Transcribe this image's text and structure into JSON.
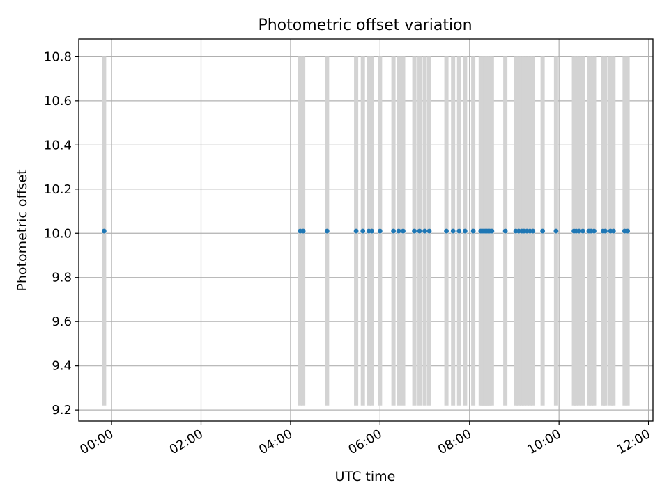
{
  "chart_data": {
    "type": "scatter",
    "title": "Photometric offset variation",
    "xlabel": "UTC time",
    "ylabel": "Photometric offset",
    "x_axis_kind": "time",
    "xlim": [
      "23:16",
      "12:06"
    ],
    "ylim": [
      9.15,
      10.88
    ],
    "grid": true,
    "x_ticks": [
      "00:00",
      "02:00",
      "04:00",
      "06:00",
      "08:00",
      "10:00",
      "12:00"
    ],
    "y_ticks": [
      "9.2",
      "9.4",
      "9.6",
      "9.8",
      "10.0",
      "10.2",
      "10.4",
      "10.6",
      "10.8"
    ],
    "marker_color": "#1f77b4",
    "errorbar_color": "#d3d3d3",
    "series": [
      {
        "x": [
          "23:50",
          "04:13",
          "04:17",
          "04:49",
          "05:28",
          "05:37",
          "05:45",
          "05:49",
          "06:00",
          "06:18",
          "06:25",
          "06:31",
          "06:46",
          "06:53",
          "07:00",
          "07:06",
          "07:29",
          "07:38",
          "07:46",
          "07:54",
          "08:05",
          "08:15",
          "08:17",
          "08:19",
          "08:21",
          "08:23",
          "08:25",
          "08:27",
          "08:30",
          "08:48",
          "09:02",
          "09:06",
          "09:10",
          "09:13",
          "09:17",
          "09:21",
          "09:25",
          "09:38",
          "09:56",
          "10:20",
          "10:23",
          "10:27",
          "10:32",
          "10:40",
          "10:43",
          "10:47",
          "10:59",
          "11:02",
          "11:09",
          "11:13",
          "11:28",
          "11:32"
        ],
        "y": [
          10.01,
          10.01,
          10.01,
          10.01,
          10.01,
          10.01,
          10.01,
          10.01,
          10.01,
          10.01,
          10.01,
          10.01,
          10.01,
          10.01,
          10.01,
          10.01,
          10.01,
          10.01,
          10.01,
          10.01,
          10.01,
          10.01,
          10.01,
          10.01,
          10.01,
          10.01,
          10.01,
          10.01,
          10.01,
          10.01,
          10.01,
          10.01,
          10.01,
          10.01,
          10.01,
          10.01,
          10.01,
          10.01,
          10.01,
          10.01,
          10.01,
          10.01,
          10.01,
          10.01,
          10.01,
          10.01,
          10.01,
          10.01,
          10.01,
          10.01,
          10.01,
          10.01
        ],
        "yerr": [
          0.79,
          0.79,
          0.79,
          0.79,
          0.79,
          0.79,
          0.79,
          0.79,
          0.79,
          0.79,
          0.79,
          0.79,
          0.79,
          0.79,
          0.79,
          0.79,
          0.79,
          0.79,
          0.79,
          0.79,
          0.79,
          0.79,
          0.79,
          0.79,
          0.79,
          0.79,
          0.79,
          0.79,
          0.79,
          0.79,
          0.79,
          0.79,
          0.79,
          0.79,
          0.79,
          0.79,
          0.79,
          0.79,
          0.79,
          0.79,
          0.79,
          0.79,
          0.79,
          0.79,
          0.79,
          0.79,
          0.79,
          0.79,
          0.79,
          0.79,
          0.79,
          0.79
        ]
      }
    ]
  }
}
